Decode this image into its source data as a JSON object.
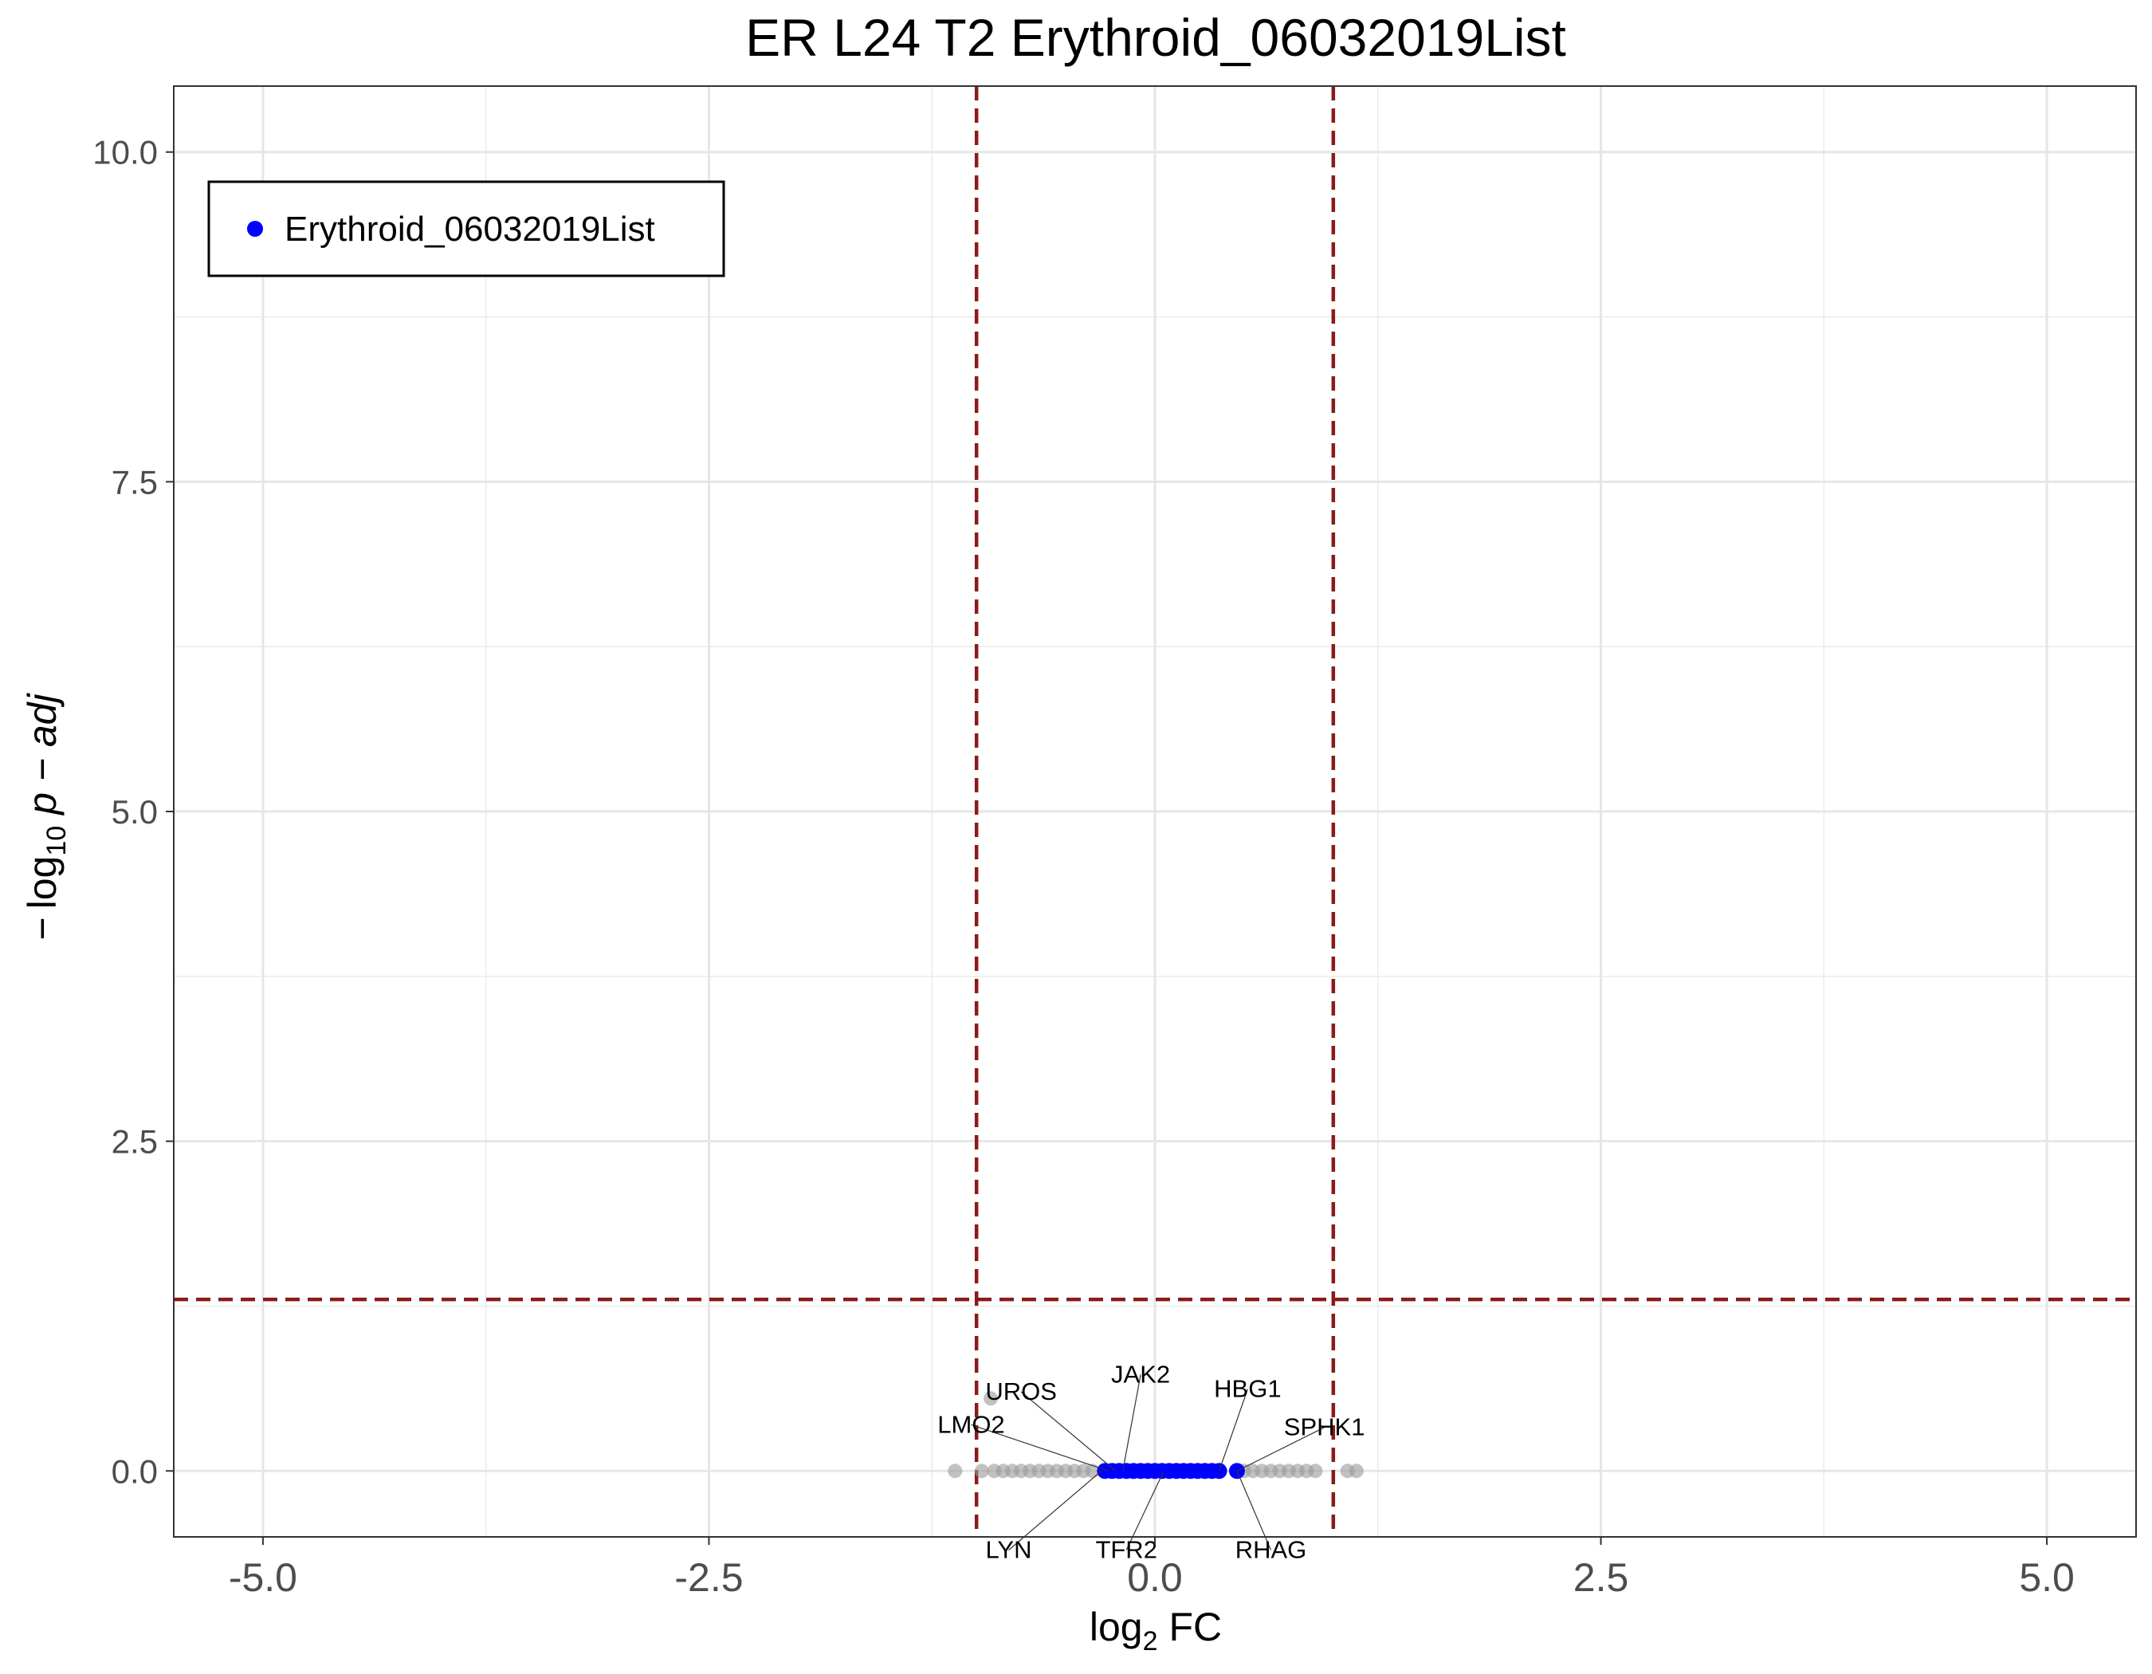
{
  "chart_data": {
    "type": "scatter",
    "title": "ER L24 T2 Erythroid_06032019List",
    "xlabel": {
      "main": "log",
      "sub": "2",
      "rest": " FC"
    },
    "ylabel": {
      "minus": "−",
      "main": "log",
      "sub": "10",
      "rest": " p − adj"
    },
    "xlim": [
      -5.5,
      5.5
    ],
    "ylim": [
      -0.5,
      10.5
    ],
    "x_ticks": [
      {
        "value": -5.0,
        "label": "-5.0"
      },
      {
        "value": -2.5,
        "label": "-2.5"
      },
      {
        "value": 0.0,
        "label": "0.0"
      },
      {
        "value": 2.5,
        "label": "2.5"
      },
      {
        "value": 5.0,
        "label": "5.0"
      }
    ],
    "y_ticks": [
      {
        "value": 0.0,
        "label": "0.0"
      },
      {
        "value": 2.5,
        "label": "2.5"
      },
      {
        "value": 5.0,
        "label": "5.0"
      },
      {
        "value": 7.5,
        "label": "7.5"
      },
      {
        "value": 10.0,
        "label": "10.0"
      }
    ],
    "grid": true,
    "thresholds": {
      "log2fc": [
        -1,
        1
      ],
      "neg_log10_padj": 1.3,
      "color": "#8b1a1a"
    },
    "legend": {
      "position": "top-left",
      "entries": [
        {
          "name": "Erythroid_06032019List",
          "color": "#0000ff"
        }
      ]
    },
    "series": [
      {
        "name": "Erythroid_06032019List",
        "color": "#0000ff",
        "points": [
          {
            "x": -0.28,
            "y": 0.0
          },
          {
            "x": -0.24,
            "y": 0.0
          },
          {
            "x": -0.2,
            "y": 0.0
          },
          {
            "x": -0.16,
            "y": 0.0
          },
          {
            "x": -0.12,
            "y": 0.0
          },
          {
            "x": -0.08,
            "y": 0.0
          },
          {
            "x": -0.04,
            "y": 0.0
          },
          {
            "x": 0.0,
            "y": 0.0
          },
          {
            "x": 0.04,
            "y": 0.0
          },
          {
            "x": 0.08,
            "y": 0.0
          },
          {
            "x": 0.12,
            "y": 0.0
          },
          {
            "x": 0.16,
            "y": 0.0
          },
          {
            "x": 0.2,
            "y": 0.0
          },
          {
            "x": 0.24,
            "y": 0.0
          },
          {
            "x": 0.28,
            "y": 0.0
          },
          {
            "x": 0.32,
            "y": 0.0
          },
          {
            "x": 0.36,
            "y": 0.0
          },
          {
            "x": 0.46,
            "y": 0.0
          }
        ]
      },
      {
        "color": "#999999",
        "points": [
          {
            "x": -1.12,
            "y": 0.0
          },
          {
            "x": -0.97,
            "y": 0.0
          },
          {
            "x": -0.92,
            "y": 0.55
          },
          {
            "x": -0.9,
            "y": 0.0
          },
          {
            "x": -0.85,
            "y": 0.0
          },
          {
            "x": -0.8,
            "y": 0.0
          },
          {
            "x": -0.75,
            "y": 0.0
          },
          {
            "x": -0.7,
            "y": 0.0
          },
          {
            "x": -0.65,
            "y": 0.0
          },
          {
            "x": -0.6,
            "y": 0.0
          },
          {
            "x": -0.55,
            "y": 0.0
          },
          {
            "x": -0.5,
            "y": 0.0
          },
          {
            "x": -0.45,
            "y": 0.0
          },
          {
            "x": -0.4,
            "y": 0.0
          },
          {
            "x": -0.35,
            "y": 0.0
          },
          {
            "x": 0.5,
            "y": 0.0
          },
          {
            "x": 0.55,
            "y": 0.0
          },
          {
            "x": 0.6,
            "y": 0.0
          },
          {
            "x": 0.65,
            "y": 0.0
          },
          {
            "x": 0.7,
            "y": 0.0
          },
          {
            "x": 0.75,
            "y": 0.0
          },
          {
            "x": 0.8,
            "y": 0.0
          },
          {
            "x": 0.85,
            "y": 0.0
          },
          {
            "x": 0.9,
            "y": 0.0
          },
          {
            "x": 1.08,
            "y": 0.0
          },
          {
            "x": 1.13,
            "y": 0.0
          }
        ]
      }
    ],
    "annotations": [
      {
        "label": "UROS",
        "x": -0.22,
        "y": 0.0,
        "label_x": -0.75,
        "label_y": 0.6
      },
      {
        "label": "JAK2",
        "x": -0.18,
        "y": 0.0,
        "label_x": -0.08,
        "label_y": 0.73
      },
      {
        "label": "HBG1",
        "x": 0.36,
        "y": 0.0,
        "label_x": 0.52,
        "label_y": 0.62
      },
      {
        "label": "LMO2",
        "x": -0.26,
        "y": 0.0,
        "label_x": -1.03,
        "label_y": 0.35
      },
      {
        "label": "SPHK1",
        "x": 0.46,
        "y": 0.0,
        "label_x": 0.95,
        "label_y": 0.33
      },
      {
        "label": "LYN",
        "x": -0.3,
        "y": 0.0,
        "label_x": -0.82,
        "label_y": -0.6
      },
      {
        "label": "TFR2",
        "x": 0.05,
        "y": 0.0,
        "label_x": -0.16,
        "label_y": -0.6
      },
      {
        "label": "RHAG",
        "x": 0.46,
        "y": 0.0,
        "label_x": 0.65,
        "label_y": -0.6
      }
    ]
  }
}
